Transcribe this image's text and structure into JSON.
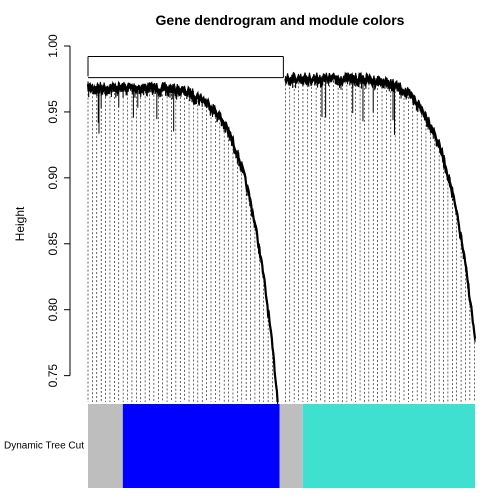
{
  "chart_data": {
    "type": "dendrogram",
    "title": "Gene dendrogram and module colors",
    "ylabel": "Height",
    "ylim": [
      0.73,
      1.0
    ],
    "yticks": [
      "0.75",
      "0.80",
      "0.85",
      "0.90",
      "0.95",
      "1.00"
    ],
    "ytick_values": [
      0.75,
      0.8,
      0.85,
      0.9,
      0.95,
      1.0
    ],
    "root_height": 0.992,
    "clusters": [
      {
        "start": 0.0,
        "end": 0.49,
        "merge_height": 0.977,
        "min_height": 0.737,
        "profile": "steep"
      },
      {
        "start": 0.51,
        "end": 1.0,
        "merge_height": 0.984,
        "min_height": 0.782,
        "profile": "steep"
      }
    ],
    "color_bar": {
      "label": "Dynamic Tree Cut",
      "segments": [
        {
          "color": "#bebebe",
          "fraction": 0.09
        },
        {
          "color": "#0000ff",
          "fraction": 0.405
        },
        {
          "color": "#bebebe",
          "fraction": 0.06
        },
        {
          "color": "#40e0d0",
          "fraction": 0.445
        }
      ]
    },
    "grid": false,
    "colors": {
      "branch": "#000000",
      "leaf_line": "#000000"
    }
  }
}
